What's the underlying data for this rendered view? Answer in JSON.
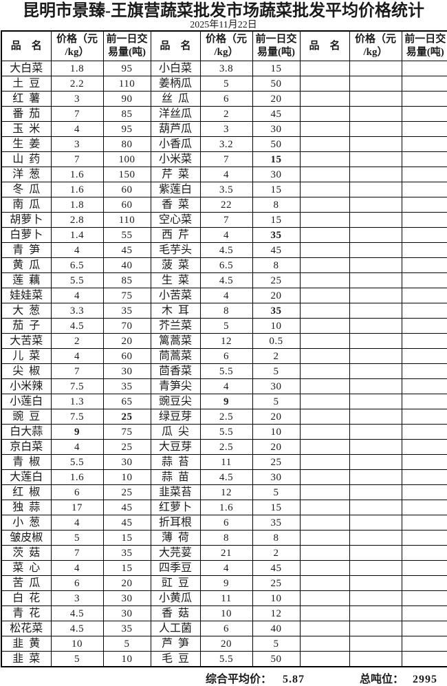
{
  "title": "昆明市景臻-王旗营蔬菜批发市场蔬菜批发平均价格统计",
  "date": "2025年11月22日",
  "header": {
    "name": "品　名",
    "price": "价格（元\n/kg）",
    "volume": "前一日交\n易量(吨)"
  },
  "groups": [
    {
      "rows": [
        {
          "n": "大白菜",
          "p": "1.8",
          "v": "95"
        },
        {
          "n": "土  豆",
          "p": "2.2",
          "v": "110"
        },
        {
          "n": "红  薯",
          "p": "3",
          "v": "90"
        },
        {
          "n": "番  茄",
          "p": "7",
          "v": "85"
        },
        {
          "n": "玉  米",
          "p": "4",
          "v": "95"
        },
        {
          "n": "生  姜",
          "p": "3",
          "v": "80"
        },
        {
          "n": "山  药",
          "p": "7",
          "v": "100"
        },
        {
          "n": "洋  葱",
          "p": "1.6",
          "v": "150"
        },
        {
          "n": "冬  瓜",
          "p": "1.6",
          "v": "60"
        },
        {
          "n": "南  瓜",
          "p": "1.8",
          "v": "60"
        },
        {
          "n": "胡萝卜",
          "p": "2.8",
          "v": "110"
        },
        {
          "n": "白萝卜",
          "p": "1.4",
          "v": "55"
        },
        {
          "n": "青  笋",
          "p": "4",
          "v": "45"
        },
        {
          "n": "黄  瓜",
          "p": "6.5",
          "v": "40"
        },
        {
          "n": "莲  藕",
          "p": "5.5",
          "v": "85"
        },
        {
          "n": "娃娃菜",
          "p": "4",
          "v": "75"
        },
        {
          "n": "大  葱",
          "p": "3.3",
          "v": "35"
        },
        {
          "n": "茄  子",
          "p": "4.5",
          "v": "70"
        },
        {
          "n": "大苦菜",
          "p": "2",
          "v": "20"
        },
        {
          "n": "儿  菜",
          "p": "4",
          "v": "60"
        },
        {
          "n": "尖  椒",
          "p": "7",
          "v": "30"
        },
        {
          "n": "小米辣",
          "p": "7.5",
          "v": "35"
        },
        {
          "n": "小莲白",
          "p": "1.3",
          "v": "65"
        },
        {
          "n": "豌  豆",
          "p": "7.5",
          "v": "25",
          "vb": true
        },
        {
          "n": "白大蒜",
          "p": "9",
          "v": "75",
          "pb": true
        },
        {
          "n": "京白菜",
          "p": "4",
          "v": "25"
        },
        {
          "n": "青  椒",
          "p": "5.5",
          "v": "30"
        },
        {
          "n": "大莲白",
          "p": "1.6",
          "v": "10"
        },
        {
          "n": "红  椒",
          "p": "6",
          "v": "25"
        },
        {
          "n": "独  蒜",
          "p": "17",
          "v": "45"
        },
        {
          "n": "小  葱",
          "p": "4",
          "v": "45"
        },
        {
          "n": "皱皮椒",
          "p": "5",
          "v": "15"
        },
        {
          "n": "茨  菇",
          "p": "7",
          "v": "35"
        },
        {
          "n": "菜  心",
          "p": "4",
          "v": "15"
        },
        {
          "n": "苦  瓜",
          "p": "6",
          "v": "20"
        },
        {
          "n": "白  花",
          "p": "3",
          "v": "30"
        },
        {
          "n": "青  花",
          "p": "4.5",
          "v": "30"
        },
        {
          "n": "松花菜",
          "p": "4.5",
          "v": "35"
        },
        {
          "n": "韭  黄",
          "p": "10",
          "v": "5"
        },
        {
          "n": "韭  菜",
          "p": "5",
          "v": "10"
        }
      ]
    },
    {
      "rows": [
        {
          "n": "小白菜",
          "p": "3.8",
          "v": "15"
        },
        {
          "n": "姜柄瓜",
          "p": "5",
          "v": "50"
        },
        {
          "n": "丝  瓜",
          "p": "6",
          "v": "20"
        },
        {
          "n": "洋丝瓜",
          "p": "2",
          "v": "45"
        },
        {
          "n": "葫芦瓜",
          "p": "3",
          "v": "30"
        },
        {
          "n": "小香瓜",
          "p": "3.2",
          "v": "50"
        },
        {
          "n": "小米菜",
          "p": "7",
          "v": "15",
          "vb": true
        },
        {
          "n": "芹  菜",
          "p": "4",
          "v": "30"
        },
        {
          "n": "紫莲白",
          "p": "3.5",
          "v": "15"
        },
        {
          "n": "香  菜",
          "p": "22",
          "v": "8"
        },
        {
          "n": "空心菜",
          "p": "7",
          "v": "15"
        },
        {
          "n": "西  芹",
          "p": "4",
          "v": "35",
          "vb": true
        },
        {
          "n": "毛芋头",
          "p": "4.5",
          "v": "45"
        },
        {
          "n": "菠  菜",
          "p": "6.5",
          "v": "8"
        },
        {
          "n": "生  菜",
          "p": "4.5",
          "v": "25"
        },
        {
          "n": "小苦菜",
          "p": "4",
          "v": "20"
        },
        {
          "n": "木  耳",
          "p": "8",
          "v": "35",
          "vb": true
        },
        {
          "n": "芥兰菜",
          "p": "5",
          "v": "10"
        },
        {
          "n": "篱蒿菜",
          "p": "12",
          "v": "0.5"
        },
        {
          "n": "茼蒿菜",
          "p": "6",
          "v": "2"
        },
        {
          "n": "茴香菜",
          "p": "5.5",
          "v": "5"
        },
        {
          "n": "青笋尖",
          "p": "4",
          "v": "30"
        },
        {
          "n": "豌豆尖",
          "p": "9",
          "v": "5",
          "pb": true
        },
        {
          "n": "绿豆芽",
          "p": "2.5",
          "v": "20"
        },
        {
          "n": "瓜  尖",
          "p": "5.5",
          "v": "10"
        },
        {
          "n": "大豆芽",
          "p": "2.5",
          "v": "20"
        },
        {
          "n": "蒜  苔",
          "p": "11",
          "v": "25"
        },
        {
          "n": "蒜  苗",
          "p": "4.5",
          "v": "30"
        },
        {
          "n": "韭菜苔",
          "p": "12",
          "v": "5"
        },
        {
          "n": "红萝卜",
          "p": "1.6",
          "v": "15"
        },
        {
          "n": "折耳根",
          "p": "6",
          "v": "35"
        },
        {
          "n": "薄  荷",
          "p": "8",
          "v": "8"
        },
        {
          "n": "大芫荽",
          "p": "21",
          "v": "2"
        },
        {
          "n": "四季豆",
          "p": "4",
          "v": "45"
        },
        {
          "n": "豇  豆",
          "p": "9",
          "v": "25"
        },
        {
          "n": "小黄瓜",
          "p": "11",
          "v": "10"
        },
        {
          "n": "香  菇",
          "p": "10",
          "v": "12"
        },
        {
          "n": "人工菌",
          "p": "6",
          "v": "40"
        },
        {
          "n": "芦  笋",
          "p": "20",
          "v": "5"
        },
        {
          "n": "毛  豆",
          "p": "5.5",
          "v": "50"
        }
      ]
    },
    {
      "rows": []
    }
  ],
  "row_count": 40,
  "summary": {
    "avg_label": "综合平均价：",
    "avg_value": "5.87",
    "total_label": "总吨位：",
    "total_value": "2995"
  },
  "colors": {
    "border": "#000000",
    "text": "#1a1a1a",
    "page_background": "#ffffff"
  }
}
